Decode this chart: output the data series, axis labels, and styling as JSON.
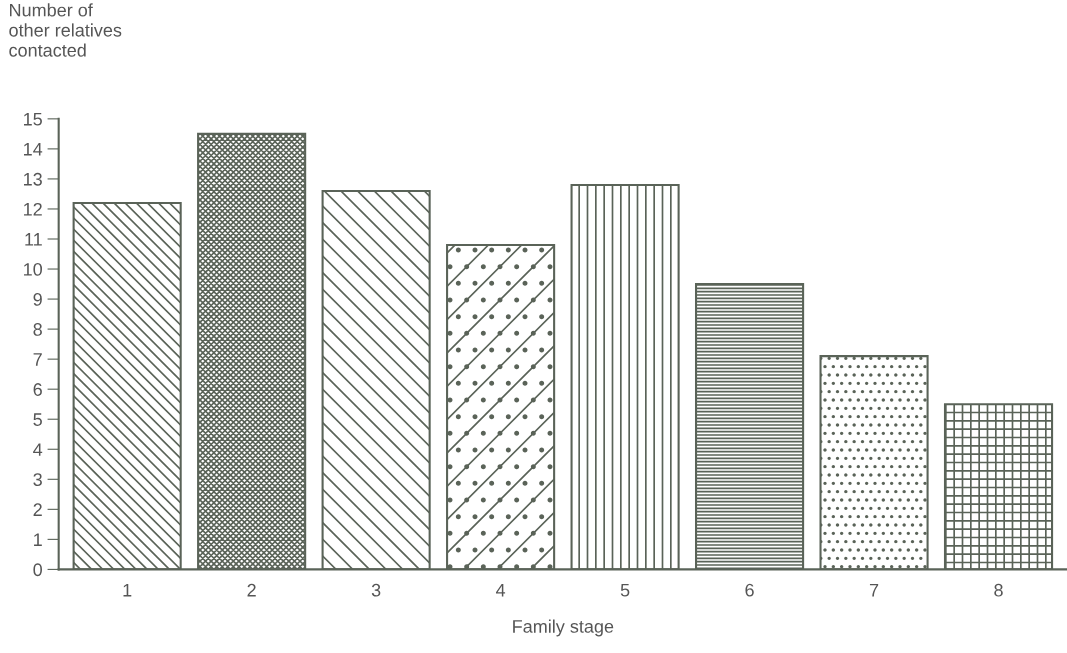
{
  "chart_data": {
    "type": "bar",
    "xlabel": "Family stage",
    "ylabel": "Number of\nother relatives\ncontacted",
    "categories": [
      "1",
      "2",
      "3",
      "4",
      "5",
      "6",
      "7",
      "8"
    ],
    "values": [
      12.2,
      14.5,
      12.6,
      10.8,
      12.8,
      9.5,
      7.1,
      5.5
    ],
    "colors": [
      "#5a6358",
      "#5a6358",
      "#5a6358",
      "#5a6358",
      "#5a6358",
      "#5a6358",
      "#5a6358",
      "#5a6358"
    ],
    "ylim": [
      0,
      15
    ],
    "yticks": [
      0,
      1,
      2,
      3,
      4,
      5,
      6,
      7,
      8,
      9,
      10,
      11,
      12,
      13,
      14,
      15
    ],
    "grid": false
  }
}
